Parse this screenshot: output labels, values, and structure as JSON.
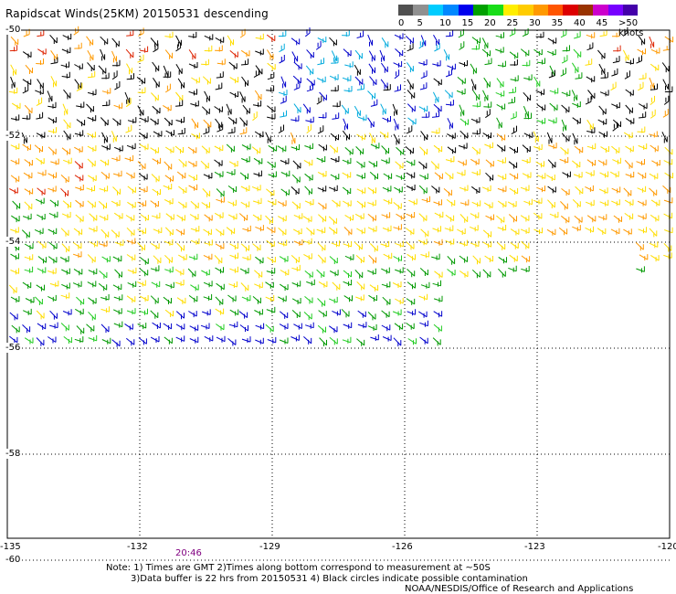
{
  "title": "Rapidscat Winds(25KM) 20150531 descending",
  "legend": {
    "labels": [
      "0",
      "5",
      "10",
      "15",
      "20",
      "25",
      "30",
      "35",
      "40",
      "45",
      ">50 knots"
    ],
    "colors": [
      "#505050",
      "#909090",
      "#00ccff",
      "#0088ff",
      "#0000ee",
      "#00a000",
      "#18dd18",
      "#ffee00",
      "#ffcc00",
      "#ff9900",
      "#ff5500",
      "#dd0000",
      "#993300",
      "#cc00cc",
      "#7700ff",
      "#4400aa"
    ]
  },
  "lat_labels": [
    "-50",
    "-52",
    "-54",
    "-56",
    "-58",
    "-60"
  ],
  "lon_labels": [
    "-135",
    "-132",
    "-129",
    "-126",
    "-123",
    "-120"
  ],
  "time_labels": [
    "20:46"
  ],
  "notes": [
    "Note: 1) Times are GMT 2)Times along bottom correspond to measurement at ~50S",
    "3)Data buffer is 22 hrs from 20150531 4) Black circles indicate possible contamination",
    "NOAA/NESDIS/Office of Research and Applications"
  ],
  "speed_colors": {
    "black": "#000000",
    "blue": "#0000cc",
    "cyan": "#00aadd",
    "green": "#009900",
    "lightgreen": "#22cc22",
    "yellow": "#ffdd00",
    "orange": "#ff9900",
    "red": "#dd2200"
  }
}
